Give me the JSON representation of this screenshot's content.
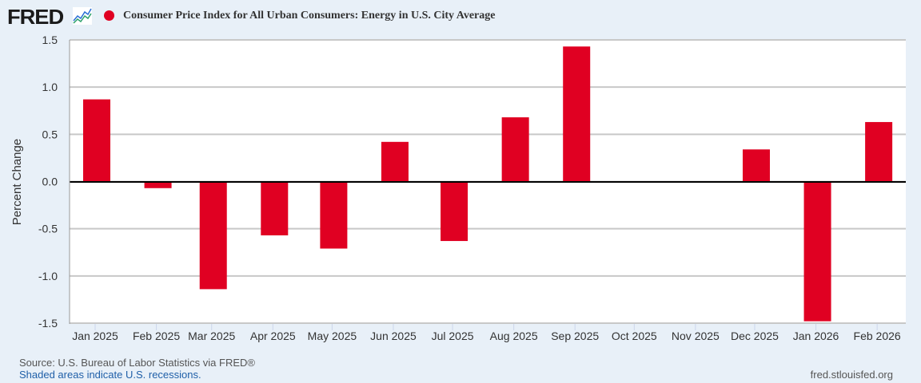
{
  "header": {
    "logo": "FRED",
    "title": "Consumer Price Index for All Urban Consumers: Energy in U.S. City Average"
  },
  "colors": {
    "bar": "#e00022",
    "background": "#e8f0f8",
    "grid": "#c8c8c8"
  },
  "chart_data": {
    "type": "bar",
    "title": "Consumer Price Index for All Urban Consumers: Energy in U.S. City Average",
    "ylabel": "Percent Change",
    "xlabel": "",
    "ylim": [
      -1.5,
      1.5
    ],
    "yticks": [
      "1.5",
      "1.0",
      "0.5",
      "0.0",
      "-0.5",
      "-1.0",
      "-1.5"
    ],
    "ytick_values": [
      1.5,
      1.0,
      0.5,
      0.0,
      -0.5,
      -1.0,
      -1.5
    ],
    "grid": true,
    "categories": [
      "Jan 2025",
      "Feb 2025",
      "Mar 2025",
      "Apr 2025",
      "May 2025",
      "Jun 2025",
      "Jul 2025",
      "Aug 2025",
      "Sep 2025",
      "Oct 2025",
      "Nov 2025",
      "Dec 2025",
      "Jan 2026",
      "Feb 2026"
    ],
    "days_from_start": [
      0,
      31,
      59,
      90,
      120,
      151,
      181,
      212,
      243,
      273,
      304,
      334,
      365,
      396
    ],
    "values": [
      0.87,
      -0.07,
      -1.14,
      -0.57,
      -0.71,
      0.42,
      -0.63,
      0.68,
      1.43,
      null,
      null,
      0.34,
      -1.48,
      0.63
    ]
  },
  "footer": {
    "source": "Source: U.S. Bureau of Labor Statistics via FRED®",
    "recessions": "Shaded areas indicate U.S. recessions.",
    "site": "fred.stlouisfed.org"
  }
}
